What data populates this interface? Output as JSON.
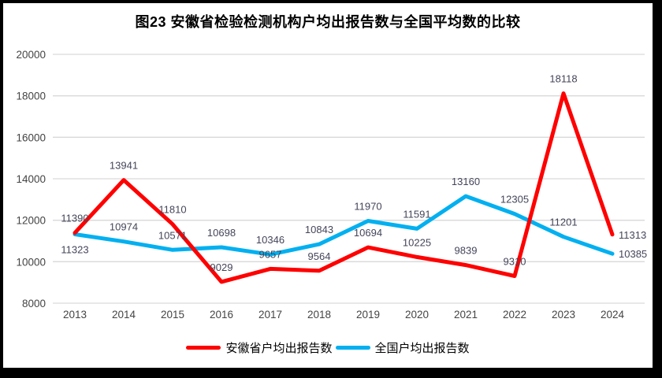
{
  "figure": {
    "title": "图23 安徽省检验检测机构户均出报告数与全国平均数的比较"
  },
  "chart_data": {
    "type": "line",
    "title": "图23 安徽省检验检测机构户均出报告数与全国平均数的比较",
    "categories": [
      "2013",
      "2014",
      "2015",
      "2016",
      "2017",
      "2018",
      "2019",
      "2020",
      "2021",
      "2022",
      "2023",
      "2024"
    ],
    "series": [
      {
        "name": "安徽省户均出报告数",
        "color": "#FF0000",
        "values": [
          11390,
          13941,
          11810,
          9029,
          9657,
          9564,
          10694,
          10225,
          9839,
          9310,
          18118,
          11313
        ],
        "label_pos": [
          "above",
          "above",
          "above",
          "above",
          "above",
          "above",
          "above",
          "above",
          "above",
          "above",
          "above",
          "right"
        ]
      },
      {
        "name": "全国户均出报告数",
        "color": "#00B0F0",
        "values": [
          11323,
          10974,
          10571,
          10698,
          10346,
          10843,
          11970,
          11591,
          13160,
          12305,
          11201,
          10385
        ],
        "label_pos": [
          "below",
          "above",
          "above",
          "above",
          "above",
          "above",
          "above",
          "above",
          "above",
          "above",
          "above",
          "right"
        ]
      }
    ],
    "ylim": [
      8000,
      20000
    ],
    "yticks": [
      8000,
      10000,
      12000,
      14000,
      16000,
      18000,
      20000
    ],
    "grid": true,
    "legend_position": "bottom",
    "data_labels": true,
    "grid_color": "#D9D9D9",
    "axis_text_color": "#444444",
    "label_text_color": "#44455a"
  }
}
